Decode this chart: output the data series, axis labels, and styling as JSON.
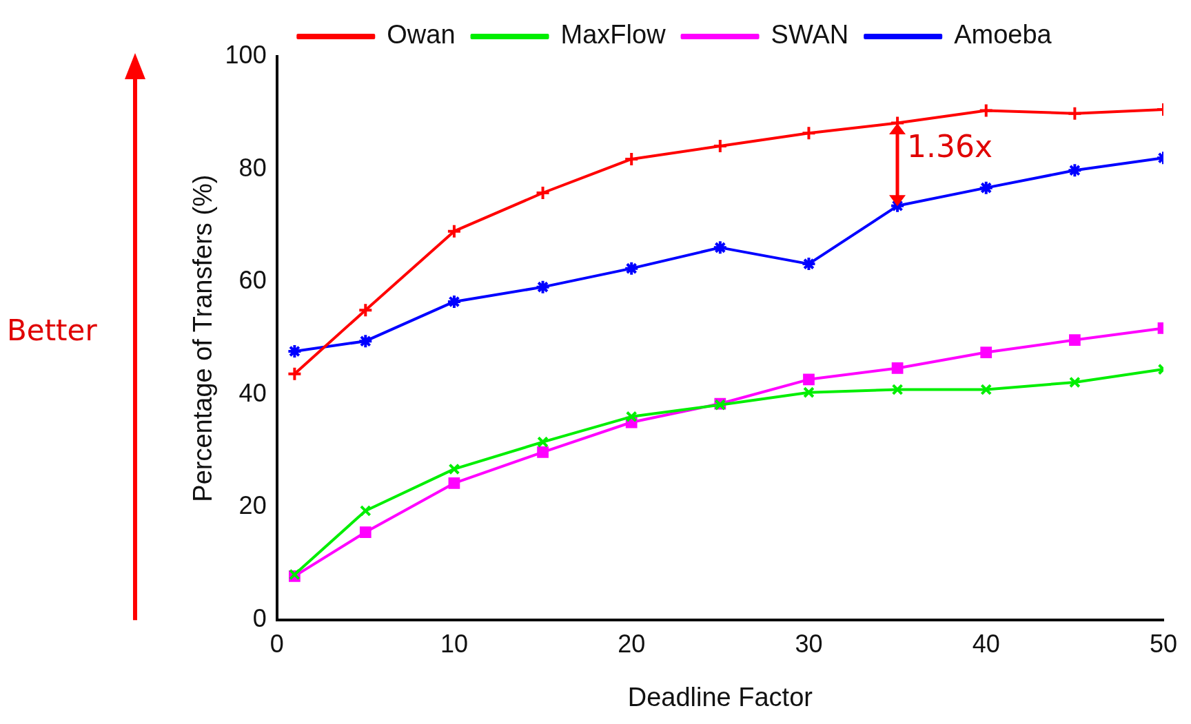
{
  "chart_data": {
    "type": "line",
    "xlabel": "Deadline Factor",
    "ylabel": "Percentage of Transfers (%)",
    "x": [
      1,
      5,
      10,
      15,
      20,
      25,
      30,
      35,
      40,
      45,
      50
    ],
    "xlim": [
      0,
      50
    ],
    "xticks": [
      0,
      10,
      20,
      30,
      40,
      50
    ],
    "ylim": [
      0,
      100
    ],
    "yticks": [
      0,
      20,
      40,
      60,
      80,
      100
    ],
    "grid": false,
    "legend": "top",
    "line_style": "solid",
    "series": [
      {
        "name": "Owan",
        "color": "#ff0000",
        "marker": "cross",
        "values": [
          43.7,
          55,
          69,
          75.8,
          81.8,
          84.1,
          86.4,
          88.2,
          90.4,
          89.9,
          90.6
        ]
      },
      {
        "name": "MaxFlow",
        "color": "#00ee00",
        "marker": "cross",
        "values": [
          8.1,
          19.4,
          26.8,
          31.6,
          36.1,
          38.2,
          40.4,
          40.9,
          40.9,
          42.2,
          44.5
        ]
      },
      {
        "name": "SWAN",
        "color": "#ff00ff",
        "marker": "square",
        "values": [
          7.8,
          15.6,
          24.3,
          29.8,
          35.1,
          38.4,
          42.7,
          44.7,
          47.5,
          49.7,
          51.8
        ]
      },
      {
        "name": "Amoeba",
        "color": "#0000ff",
        "marker": "cross",
        "values": [
          47.7,
          49.5,
          56.5,
          59.1,
          62.4,
          66.1,
          63.2,
          73.5,
          76.7,
          79.8,
          82
        ]
      }
    ],
    "annotations": [
      "1.36x",
      "Better"
    ]
  }
}
